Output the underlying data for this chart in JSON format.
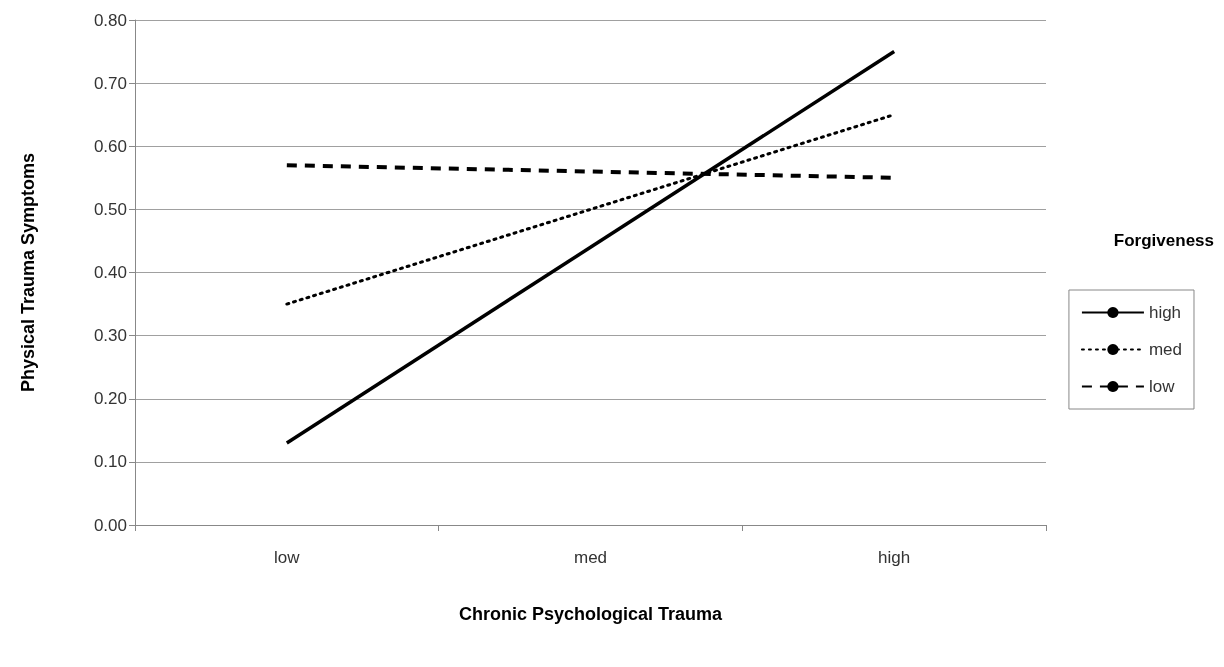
{
  "chart_data": {
    "type": "line",
    "xlabel": "Chronic Psychological Trauma",
    "ylabel": "Physical Trauma Symptoms",
    "legend_title": "Forgiveness",
    "categories": [
      "low",
      "med",
      "high"
    ],
    "series": [
      {
        "name": "high",
        "color": "#000000",
        "line_style": "solid",
        "values": [
          0.13,
          0.44,
          0.75
        ]
      },
      {
        "name": "med",
        "color": "#000000",
        "line_style": "dotted",
        "values": [
          0.35,
          0.5,
          0.65
        ]
      },
      {
        "name": "low",
        "color": "#000000",
        "line_style": "dashed",
        "values": [
          0.57,
          0.56,
          0.55
        ]
      }
    ],
    "ylim": [
      0,
      0.8
    ],
    "yticks": [
      {
        "value": 0,
        "label": "0.00"
      },
      {
        "value": 0.1,
        "label": "0.10"
      },
      {
        "value": 0.2,
        "label": "0.20"
      },
      {
        "value": 0.3,
        "label": "0.30"
      },
      {
        "value": 0.4,
        "label": "0.40"
      },
      {
        "value": 0.5,
        "label": "0.50"
      },
      {
        "value": 0.6,
        "label": "0.60"
      },
      {
        "value": 0.7,
        "label": "0.70"
      },
      {
        "value": 0.8,
        "label": "0.80"
      }
    ],
    "grid": "y",
    "legend": "right",
    "marker": "none"
  }
}
